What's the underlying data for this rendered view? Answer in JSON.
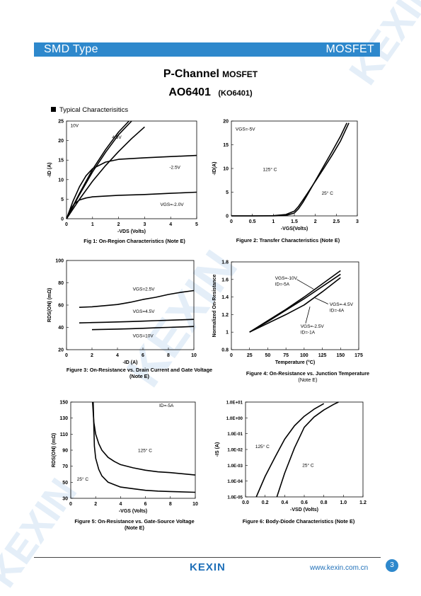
{
  "header": {
    "left_label": "SMD Type",
    "right_label": "MOSFET"
  },
  "title": {
    "channel": "P-Channel",
    "type": "MOSFET",
    "part": "AO6401",
    "alt_part": "(KO6401)"
  },
  "section_title": "Typical  Characterisitics",
  "watermark": "KEXIN",
  "footer": {
    "logo": "KEXIN",
    "url": "www.kexin.com.cn",
    "page": "3"
  },
  "colors": {
    "band": "#2e88cc",
    "brand": "#1e6fb8"
  },
  "chart_data": [
    {
      "id": "fig1",
      "type": "line",
      "caption": "Fig 1: On-Region Characteristics (Note E)",
      "xlabel": "-VDS (Volts)",
      "ylabel": "-ID (A)",
      "xlim": [
        0,
        5
      ],
      "ylim": [
        0,
        25
      ],
      "xticks": [
        "0",
        "1",
        "2",
        "3",
        "4",
        "5"
      ],
      "yticks": [
        "0",
        "5",
        "10",
        "15",
        "20",
        "25"
      ],
      "series": [
        {
          "name": "10V",
          "x": [
            0,
            0.5,
            1,
            1.5,
            2,
            2.5
          ],
          "y": [
            0,
            6.2,
            12,
            17,
            21.5,
            25
          ]
        },
        {
          "name": "10V",
          "x": [
            0,
            0.5,
            1,
            1.5,
            2,
            2.4
          ],
          "y": [
            0,
            6.5,
            12.6,
            17.7,
            22.2,
            25
          ]
        },
        {
          "name": "4.5V",
          "x": [
            0,
            0.5,
            1,
            1.5,
            2,
            2.5,
            3
          ],
          "y": [
            0,
            5,
            9.6,
            13.6,
            17.2,
            20.5,
            23.5
          ]
        },
        {
          "name": "-2.5V",
          "x": [
            0,
            0.25,
            0.5,
            0.75,
            1,
            1.5,
            2,
            3,
            4,
            5
          ],
          "y": [
            0,
            4.5,
            8.2,
            11,
            12.8,
            14.5,
            15.2,
            15.6,
            15.9,
            16.2
          ]
        },
        {
          "name": "VGS=-2.0V",
          "x": [
            0,
            0.15,
            0.3,
            0.5,
            0.75,
            1,
            2,
            3,
            4,
            5
          ],
          "y": [
            0,
            2.4,
            3.8,
            4.8,
            5.3,
            5.6,
            6,
            6.2,
            6.5,
            6.8
          ]
        }
      ],
      "labels": [
        {
          "text": "10V",
          "x": 0.15,
          "y": 23.5
        },
        {
          "text": "4.5V",
          "x": 1.75,
          "y": 20.5
        },
        {
          "text": "-2.5V",
          "x": 3.95,
          "y": 12.8
        },
        {
          "text": "VGS=-2.0V",
          "x": 3.6,
          "y": 3.3
        }
      ]
    },
    {
      "id": "fig2",
      "type": "line",
      "caption": "Figure 2: Transfer Characteristics (Note E)",
      "xlabel": "-VGS(Volts)",
      "ylabel": "-ID(A)",
      "xlim": [
        0,
        3
      ],
      "ylim": [
        0,
        20
      ],
      "xticks": [
        "0",
        "0.5",
        "1",
        "1.5",
        "2",
        "2.5",
        "3"
      ],
      "yticks": [
        "0",
        "5",
        "10",
        "15",
        "20"
      ],
      "series": [
        {
          "name": "125°C",
          "x": [
            0,
            0.5,
            1,
            1.3,
            1.5,
            1.6,
            1.7,
            1.8,
            2,
            2.2,
            2.4,
            2.6,
            2.8
          ],
          "y": [
            0,
            0,
            0.05,
            0.3,
            1,
            2,
            3.3,
            4.6,
            7.3,
            10,
            12.8,
            15.8,
            19.6
          ]
        },
        {
          "name": "25°C",
          "x": [
            0,
            0.5,
            1,
            1.3,
            1.5,
            1.6,
            1.7,
            1.8,
            2,
            2.2,
            2.4,
            2.6,
            2.75
          ],
          "y": [
            0,
            0,
            0,
            0.1,
            0.6,
            1.5,
            2.8,
            4.3,
            7.4,
            10.5,
            13.6,
            16.8,
            19.6
          ]
        }
      ],
      "labels": [
        {
          "text": "VGS=-5V",
          "x": 0.1,
          "y": 18
        },
        {
          "text": "125° C",
          "x": 0.75,
          "y": 9.5
        },
        {
          "text": "25° C",
          "x": 2.15,
          "y": 4.5
        }
      ]
    },
    {
      "id": "fig3",
      "type": "line",
      "caption": "Figure 3: On-Resistance vs. Drain Current and Gate Voltage (Note E)",
      "xlabel": "-ID (A)",
      "ylabel": "RDS(ON) (mΩ)",
      "xlim": [
        0,
        10
      ],
      "ylim": [
        20,
        100
      ],
      "xticks": [
        "0",
        "2",
        "4",
        "6",
        "8",
        "10"
      ],
      "yticks": [
        "20",
        "40",
        "60",
        "80",
        "100"
      ],
      "series": [
        {
          "name": "VGS=2.5V",
          "x": [
            1,
            2,
            3,
            4,
            5,
            6,
            7,
            8,
            9,
            10
          ],
          "y": [
            58,
            58.5,
            59.5,
            60.5,
            62.5,
            65,
            67,
            69.5,
            71.5,
            73
          ]
        },
        {
          "name": "VGS=4.5V",
          "x": [
            1,
            2,
            3,
            4,
            5,
            6,
            7,
            8,
            9,
            10
          ],
          "y": [
            44,
            44.3,
            44.6,
            44.9,
            45.2,
            45.6,
            46,
            46.4,
            46.8,
            47.2
          ]
        },
        {
          "name": "VGS=10V",
          "x": [
            2,
            3,
            4,
            5,
            6,
            7,
            8,
            9,
            10
          ],
          "y": [
            38,
            38.2,
            38.5,
            38.8,
            39.2,
            39.6,
            40,
            40.4,
            40.8
          ]
        }
      ],
      "labels": [
        {
          "text": "VGS=2.5V",
          "x": 5.2,
          "y": 73
        },
        {
          "text": "VGS=4.5V",
          "x": 5.2,
          "y": 53
        },
        {
          "text": "VGS=10V",
          "x": 5.2,
          "y": 31
        }
      ]
    },
    {
      "id": "fig4",
      "type": "line",
      "caption": "Figure 4: On-Resistance vs. Junction Temperature",
      "caption2": "(Note E)",
      "xlabel": "Temperature (°C)",
      "ylabel": "Normalized On-Resistance",
      "xlim": [
        0,
        175
      ],
      "ylim": [
        0.8,
        1.8
      ],
      "xticks": [
        "0",
        "25",
        "50",
        "75",
        "100",
        "125",
        "150",
        "175"
      ],
      "yticks": [
        "0.8",
        "1",
        "1.2",
        "1.4",
        "1.6",
        "1.8"
      ],
      "series": [
        {
          "name": "VGS=-10V ID=-5A",
          "x": [
            25,
            50,
            75,
            100,
            125,
            150
          ],
          "y": [
            1,
            1.13,
            1.26,
            1.4,
            1.55,
            1.7
          ]
        },
        {
          "name": "VGS=-4.5V ID=-4A",
          "x": [
            25,
            50,
            75,
            100,
            125,
            150
          ],
          "y": [
            1,
            1.12,
            1.25,
            1.38,
            1.52,
            1.66
          ]
        },
        {
          "name": "VGS=-2.5V ID=-1A",
          "x": [
            25,
            50,
            75,
            100,
            125,
            150
          ],
          "y": [
            1,
            1.1,
            1.2,
            1.31,
            1.46,
            1.62
          ]
        }
      ],
      "labels": [
        {
          "text": "VGS=-10V",
          "x": 60,
          "y": 1.6
        },
        {
          "text": "ID=-5A",
          "x": 60,
          "y": 1.53
        },
        {
          "text": "VGS=-4.5V",
          "x": 135,
          "y": 1.3
        },
        {
          "text": "ID=-4A",
          "x": 135,
          "y": 1.23
        },
        {
          "text": "VGS=-2.5V",
          "x": 95,
          "y": 1.05
        },
        {
          "text": "ID=-1A",
          "x": 95,
          "y": 0.98
        }
      ]
    },
    {
      "id": "fig5",
      "type": "line",
      "caption": "Figure 5: On-Resistance vs. Gate-Source Voltage",
      "caption2": "(Note E)",
      "xlabel": "-VGS (Volts)",
      "ylabel": "RDS(ON) (mΩ)",
      "xlim": [
        0,
        10
      ],
      "ylim": [
        30,
        150
      ],
      "xticks": [
        "0",
        "2",
        "4",
        "6",
        "8",
        "10"
      ],
      "yticks": [
        "30",
        "50",
        "70",
        "90",
        "110",
        "130",
        "150"
      ],
      "series": [
        {
          "name": "125°C",
          "x": [
            1.75,
            1.85,
            2,
            2.25,
            2.5,
            3,
            3.5,
            4,
            5,
            6,
            7,
            8,
            10
          ],
          "y": [
            150,
            125,
            110,
            98,
            90,
            81,
            76,
            72,
            68,
            65,
            63,
            62,
            59
          ]
        },
        {
          "name": "25°C",
          "x": [
            1.8,
            1.9,
            2,
            2.25,
            2.5,
            3,
            3.5,
            4,
            5,
            6,
            7,
            8,
            10
          ],
          "y": [
            150,
            95,
            80,
            66,
            58,
            50,
            47,
            44,
            42,
            40,
            39,
            38.5,
            37.5
          ]
        }
      ],
      "labels": [
        {
          "text": "ID=-5A",
          "x": 7.1,
          "y": 144
        },
        {
          "text": "125° C",
          "x": 5.4,
          "y": 88
        },
        {
          "text": "25° C",
          "x": 0.5,
          "y": 52
        }
      ]
    },
    {
      "id": "fig6",
      "type": "line",
      "caption": "Figure 6: Body-Diode Characteristics (Note E)",
      "xlabel": "-VSD (Volts)",
      "ylabel": "-IS (A)",
      "xlim": [
        0,
        1.2
      ],
      "ylim_log": [
        -5,
        1
      ],
      "log_y": true,
      "xticks": [
        "0.0",
        "0.2",
        "0.4",
        "0.6",
        "0.8",
        "1.0",
        "1.2"
      ],
      "yticks": [
        "1.0E-05",
        "1.0E-04",
        "1.0E-03",
        "1.0E-02",
        "1.0E-01",
        "1.0E+00",
        "1.0E+01"
      ],
      "series": [
        {
          "name": "125°C",
          "x": [
            0.11,
            0.2,
            0.3,
            0.4,
            0.5,
            0.6,
            0.7,
            0.8
          ],
          "y_log": [
            -5,
            -3.7,
            -2.5,
            -1.35,
            -0.5,
            0.1,
            0.55,
            0.9
          ]
        },
        {
          "name": "25°C",
          "x": [
            0.32,
            0.4,
            0.5,
            0.6,
            0.7,
            0.8,
            0.9,
            0.95
          ],
          "y_log": [
            -5,
            -3.5,
            -1.9,
            -0.6,
            0.05,
            0.5,
            0.85,
            1
          ]
        }
      ],
      "labels": [
        {
          "text": "125° C",
          "x": 0.1,
          "y_log": -1.9
        },
        {
          "text": "25° C",
          "x": 0.58,
          "y_log": -3.1
        }
      ]
    }
  ]
}
